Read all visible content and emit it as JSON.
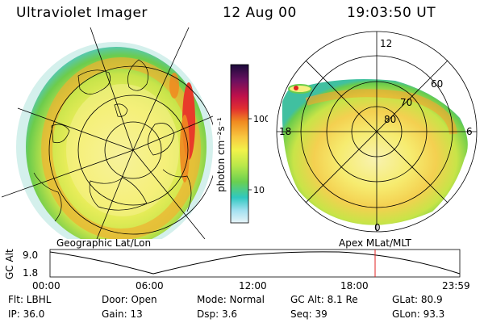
{
  "header": {
    "instrument": "Ultraviolet Imager",
    "date": "12 Aug 00",
    "time": "19:03:50 UT"
  },
  "left_panel": {
    "caption": "Geographic Lat/Lon"
  },
  "right_panel": {
    "caption": "Apex  MLat/MLT",
    "mlt_labels": {
      "top": "12",
      "left": "18",
      "right": "6",
      "bottom": "0"
    },
    "mlat_labels": [
      "80",
      "70",
      "60"
    ]
  },
  "colorbar": {
    "unit_label": "photon cm⁻²s⁻¹",
    "ticks": [
      "100",
      "10"
    ],
    "colors_top_to_bottom": [
      "#1a0a3a",
      "#6a1060",
      "#c0104a",
      "#e23030",
      "#f08a20",
      "#f8c840",
      "#f2f24a",
      "#b8e84a",
      "#6ad050",
      "#30c8c0",
      "#a0e0f0",
      "#e8f4f8"
    ]
  },
  "altitude_plot": {
    "ylabel": "GC Alt",
    "yticks": [
      "9.0",
      "1.8"
    ],
    "xticks": [
      "00:00",
      "06:00",
      "12:00",
      "18:00",
      "23:59"
    ],
    "current_marker_color": "#e02020"
  },
  "info": {
    "row1": {
      "flt": "Flt: LBHL",
      "door": "Door: Open",
      "mode": "Mode:  Normal",
      "gcalt": "GC Alt: 8.1 Re",
      "glat": "GLat:  80.9"
    },
    "row2": {
      "ip": "IP: 36.0",
      "gain": "Gain: 13",
      "dsp": "Dsp:      3.6",
      "seq": "Seq: 39",
      "glon": "GLon:   93.3"
    }
  }
}
